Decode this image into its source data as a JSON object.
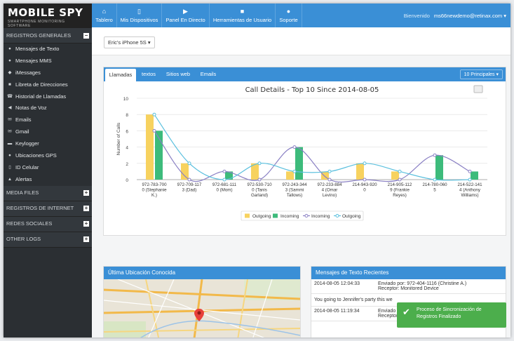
{
  "logo": {
    "title": "MOBILE SPY",
    "subtitle": "SMARTPHONE MONITORING SOFTWARE"
  },
  "sidebar": {
    "sections": [
      {
        "label": "REGISTROS GENERALES",
        "toggle": "−"
      },
      {
        "label": "MEDIA FILES",
        "toggle": "+"
      },
      {
        "label": "REGISTROS DE INTERNET",
        "toggle": "+"
      },
      {
        "label": "REDES SOCIALES",
        "toggle": "+"
      },
      {
        "label": "OTHER LOGS",
        "toggle": "+"
      }
    ],
    "items": [
      {
        "label": "Mensajes de Texto",
        "icon": "chat-icon",
        "glyph": "●"
      },
      {
        "label": "Mensajes MMS",
        "icon": "chat-icon",
        "glyph": "●"
      },
      {
        "label": "iMessages",
        "icon": "apple-icon",
        "glyph": "◆"
      },
      {
        "label": "Libreta de Direcciones",
        "icon": "book-icon",
        "glyph": "■"
      },
      {
        "label": "Historial de Llamadas",
        "icon": "phone-icon",
        "glyph": "☎"
      },
      {
        "label": "Notas de Voz",
        "icon": "speaker-icon",
        "glyph": "◀"
      },
      {
        "label": "Emails",
        "icon": "envelope-icon",
        "glyph": "✉"
      },
      {
        "label": "Gmail",
        "icon": "envelope-icon",
        "glyph": "✉"
      },
      {
        "label": "Keylogger",
        "icon": "keyboard-icon",
        "glyph": "▬"
      },
      {
        "label": "Ubicaciones GPS",
        "icon": "map-marker-icon",
        "glyph": "●"
      },
      {
        "label": "ID Celular",
        "icon": "info-icon",
        "glyph": "▯"
      },
      {
        "label": "Alertas",
        "icon": "warning-icon",
        "glyph": "▲"
      }
    ]
  },
  "nav": [
    {
      "label": "Tablero",
      "icon": "home-icon",
      "glyph": "⌂"
    },
    {
      "label": "Mis Dispositivos",
      "icon": "mobile-icon",
      "glyph": "▯"
    },
    {
      "label": "Panel En Directo",
      "icon": "video-icon",
      "glyph": "▶"
    },
    {
      "label": "Herramientas de Usuario",
      "icon": "briefcase-icon",
      "glyph": "■"
    },
    {
      "label": "Soporte",
      "icon": "user-icon",
      "glyph": "●"
    }
  ],
  "welcome": {
    "greeting": "Bienvenido",
    "account": "ms66newdemo@retinax.com"
  },
  "device": {
    "selected": "Eric's iPhone 5S"
  },
  "tabs": [
    "Llamadas",
    "textos",
    "Sitios web",
    "Emails"
  ],
  "top_select": "10 Principales",
  "chart_data": {
    "type": "bar",
    "title": "Call Details - Top 10 Since 2014-08-05",
    "ylabel": "Number of Calls",
    "ylim": [
      0,
      10
    ],
    "yticks": [
      0,
      2,
      4,
      6,
      8,
      10
    ],
    "categories": [
      [
        "972-783-700",
        "0 (Stephanie",
        "K.)"
      ],
      [
        "972-709-117",
        "3 (Dad)"
      ],
      [
        "972-681-111",
        "0 (Mom)"
      ],
      [
        "972-530-710",
        "0 (Tanis",
        "Garland)"
      ],
      [
        "972-243-344",
        "3 (Sammi",
        "Tallows)"
      ],
      [
        "972-233-884",
        "4 (Omar",
        "Levino)"
      ],
      [
        "214-943-920",
        "0"
      ],
      [
        "214-905-112",
        "9 (Frankie",
        "Reyes)"
      ],
      [
        "214-780-060",
        "5"
      ],
      [
        "214-522-141",
        "4 (Anthony",
        "Williams)"
      ]
    ],
    "series": [
      {
        "name": "Outgoing",
        "kind": "bar",
        "color": "#f7d25f",
        "values": [
          8,
          2,
          0,
          2,
          1,
          1,
          2,
          1,
          0,
          0
        ]
      },
      {
        "name": "Incoming",
        "kind": "bar",
        "color": "#3dbb7b",
        "values": [
          6,
          0,
          1,
          0,
          4,
          0,
          0,
          0,
          3,
          1
        ]
      },
      {
        "name": "Incoming",
        "kind": "line",
        "color": "#8a80c4",
        "values": [
          6,
          0,
          1,
          0,
          4,
          0,
          0,
          0,
          3,
          1
        ]
      },
      {
        "name": "Outgoing",
        "kind": "line",
        "color": "#5bc0de",
        "values": [
          8,
          2,
          0,
          2,
          1,
          1,
          2,
          1,
          0,
          0
        ]
      }
    ]
  },
  "map_panel": {
    "title": "Última Ubicación Conocida"
  },
  "sms_panel": {
    "title": "Mensajes de Texto Recientes",
    "rows": [
      {
        "date": "2014-08-05 12:04:33",
        "line1": "Enviado por: 972-404-1116 (Christine A.)",
        "line2": "Receptor: Monitored Device"
      },
      {
        "date": "",
        "line1": "You going to Jennifer's party this we",
        "line2": ""
      },
      {
        "date": "2014-08-05 11:19:34",
        "line1": "Enviado por:",
        "line2": "Receptor:"
      }
    ]
  },
  "toast": {
    "text": "Proceso de Sincronización de Registros Finalizado"
  }
}
